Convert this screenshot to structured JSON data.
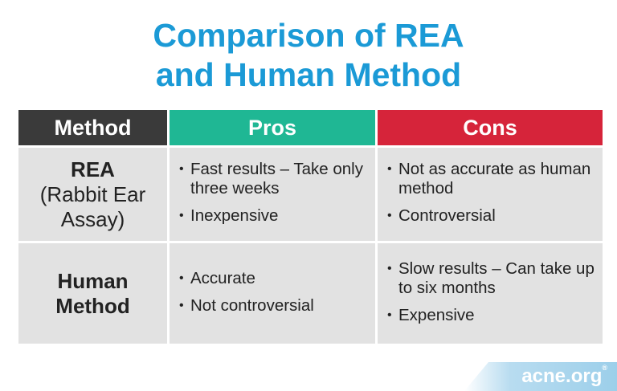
{
  "title": {
    "line1": "Comparison of REA",
    "line2": "and Human Method"
  },
  "table": {
    "headers": {
      "method": "Method",
      "pros": "Pros",
      "cons": "Cons"
    },
    "rows": [
      {
        "method_name": "REA",
        "method_sub_line1": "(Rabbit Ear",
        "method_sub_line2": "Assay)",
        "pros": [
          "Fast results – Take only three weeks",
          "Inexpensive"
        ],
        "cons": [
          "Not as accurate as human method",
          "Controversial"
        ]
      },
      {
        "method_name_line1": "Human",
        "method_name_line2": "Method",
        "pros": [
          "Accurate",
          "Not controversial"
        ],
        "cons": [
          "Slow results – Can take up to six months",
          "Expensive"
        ]
      }
    ],
    "colors": {
      "method_header": "#3a3a3a",
      "pros_header": "#1fb794",
      "cons_header": "#d6243a",
      "cell_background": "#e2e2e2"
    }
  },
  "brand": {
    "name": "acne.org",
    "mark": "®"
  },
  "bullet_symbol": "•",
  "colors": {
    "title": "#1b9ad6"
  }
}
